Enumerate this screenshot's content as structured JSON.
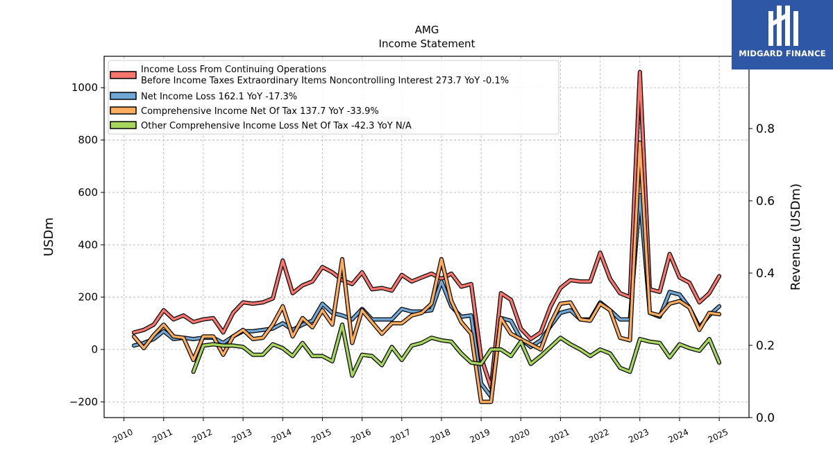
{
  "brand": {
    "name": "MIDGARD FINANCE",
    "bg_color": "#2e57a6",
    "icon": "midgard-logo-icon"
  },
  "chart_data": {
    "type": "line",
    "title": "AMG",
    "subtitle": "Income Statement",
    "ylabel": "USDm",
    "ylabel_right": "Revenue (USDm)",
    "ylim": [
      -260,
      1120
    ],
    "yticks": [
      -200,
      0,
      200,
      400,
      600,
      800,
      1000
    ],
    "ylim_right": [
      0,
      1.0
    ],
    "yticks_right": [
      "0.0",
      "0.2",
      "0.4",
      "0.6",
      "0.8"
    ],
    "xlim": [
      2009.5,
      2025.75
    ],
    "xticks": [
      "2010",
      "2011",
      "2012",
      "2013",
      "2014",
      "2015",
      "2016",
      "2017",
      "2018",
      "2019",
      "2020",
      "2021",
      "2022",
      "2023",
      "2024",
      "2025"
    ],
    "grid": true,
    "legend_position": "top-left",
    "x": [
      2010.25,
      2010.5,
      2010.75,
      2011.0,
      2011.25,
      2011.5,
      2011.75,
      2012.0,
      2012.25,
      2012.5,
      2012.75,
      2013.0,
      2013.25,
      2013.5,
      2013.75,
      2014.0,
      2014.25,
      2014.5,
      2014.75,
      2015.0,
      2015.25,
      2015.5,
      2015.75,
      2016.0,
      2016.25,
      2016.5,
      2016.75,
      2017.0,
      2017.25,
      2017.5,
      2017.75,
      2018.0,
      2018.25,
      2018.5,
      2018.75,
      2019.0,
      2019.25,
      2019.5,
      2019.75,
      2020.0,
      2020.25,
      2020.5,
      2020.75,
      2021.0,
      2021.25,
      2021.5,
      2021.75,
      2022.0,
      2022.25,
      2022.5,
      2022.75,
      2023.0,
      2023.25,
      2023.5,
      2023.75,
      2024.0,
      2024.25,
      2024.5,
      2024.75,
      2025.0
    ],
    "series": [
      {
        "name": "Income Loss From Continuing Operations",
        "name_line2": "Before Income Taxes Extraordinary Items Noncontrolling Interest",
        "legend_stats": "273.7 YoY -0.1%",
        "color": "#f8766d",
        "values": [
          65,
          75,
          95,
          150,
          115,
          130,
          105,
          115,
          120,
          65,
          140,
          180,
          175,
          180,
          195,
          340,
          215,
          245,
          260,
          315,
          295,
          265,
          250,
          295,
          230,
          235,
          225,
          285,
          260,
          275,
          290,
          270,
          290,
          240,
          250,
          -30,
          -145,
          215,
          190,
          80,
          40,
          65,
          165,
          235,
          265,
          260,
          260,
          370,
          270,
          215,
          200,
          1060,
          230,
          220,
          365,
          275,
          255,
          180,
          215,
          280
        ]
      },
      {
        "name": "Net Income Loss",
        "legend_stats": "162.1 YoY -17.3%",
        "color": "#6fa8d6",
        "values": [
          15,
          25,
          40,
          70,
          40,
          45,
          40,
          45,
          45,
          25,
          50,
          70,
          70,
          75,
          80,
          100,
          75,
          95,
          110,
          175,
          140,
          130,
          115,
          155,
          115,
          115,
          115,
          155,
          145,
          145,
          150,
          260,
          165,
          125,
          130,
          -130,
          -180,
          120,
          110,
          40,
          10,
          35,
          90,
          140,
          150,
          115,
          115,
          180,
          150,
          115,
          115,
          590,
          140,
          125,
          220,
          210,
          160,
          85,
          130,
          165
        ]
      },
      {
        "name": "Comprehensive Income Net Of Tax",
        "legend_stats": "137.7 YoY -33.9%",
        "color": "#ffad5c",
        "values": [
          50,
          5,
          55,
          95,
          50,
          45,
          -40,
          50,
          50,
          -20,
          50,
          75,
          40,
          45,
          95,
          165,
          50,
          120,
          85,
          150,
          95,
          345,
          25,
          150,
          105,
          60,
          100,
          100,
          130,
          140,
          175,
          345,
          185,
          105,
          60,
          -200,
          -200,
          120,
          60,
          40,
          20,
          0,
          100,
          175,
          180,
          115,
          110,
          175,
          150,
          45,
          35,
          790,
          140,
          130,
          175,
          185,
          160,
          75,
          140,
          135
        ]
      },
      {
        "name": "Other Comprehensive Income Loss Net Of Tax",
        "legend_stats": "-42.3 YoY N/A",
        "color": "#a6d65e",
        "values": [
          null,
          null,
          null,
          null,
          null,
          null,
          -85,
          15,
          20,
          15,
          15,
          10,
          -20,
          -20,
          20,
          5,
          -25,
          25,
          -25,
          -25,
          -45,
          95,
          -100,
          -20,
          -25,
          -60,
          10,
          -40,
          15,
          25,
          45,
          35,
          30,
          -15,
          -50,
          -55,
          0,
          0,
          -25,
          30,
          -55,
          -25,
          10,
          45,
          20,
          0,
          -25,
          0,
          -15,
          -70,
          -85,
          40,
          30,
          25,
          -30,
          20,
          5,
          -5,
          40,
          -50
        ]
      }
    ]
  }
}
